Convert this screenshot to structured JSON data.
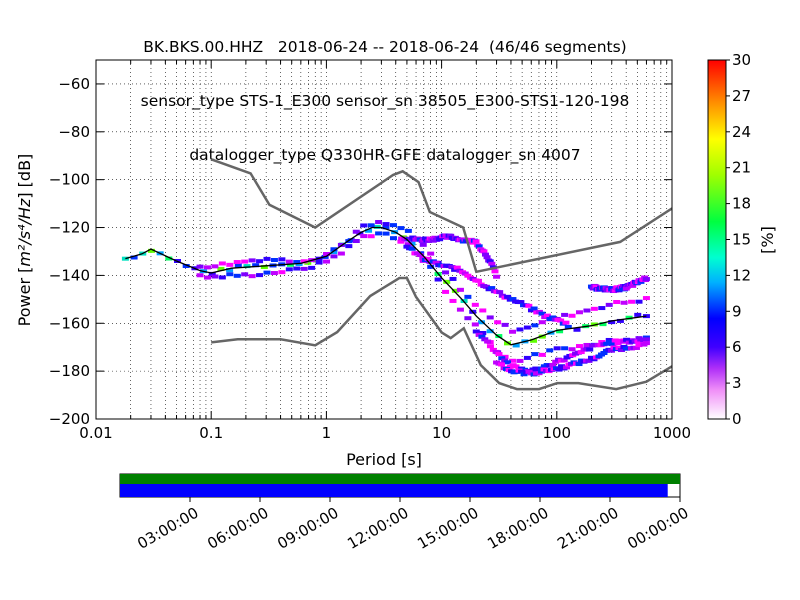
{
  "title_lines": [
    "BK.BKS.00.HHZ   2018-06-24 -- 2018-06-24  (46/46 segments)",
    "sensor_type STS-1_E300 sensor_sn 38505_E300-STS1-120-198",
    "datalogger_type Q330HR-GFE datalogger_sn 4007"
  ],
  "chart_data": {
    "type": "heatmap",
    "xlabel": "Period [s]",
    "ylabel_prefix": "Power [",
    "ylabel_units": "m²/s⁴/Hz",
    "ylabel_suffix": "] [dB]",
    "xscale": "log",
    "xlim": [
      0.01,
      1000
    ],
    "ylim": [
      -200,
      -50
    ],
    "xticks": [
      {
        "value": 0.01,
        "label": "0.01"
      },
      {
        "value": 0.1,
        "label": "0.1"
      },
      {
        "value": 1,
        "label": "1"
      },
      {
        "value": 10,
        "label": "10"
      },
      {
        "value": 100,
        "label": "100"
      },
      {
        "value": 1000,
        "label": "1000"
      }
    ],
    "yticks": [
      {
        "value": -60,
        "label": "−60"
      },
      {
        "value": -80,
        "label": "−80"
      },
      {
        "value": -100,
        "label": "−100"
      },
      {
        "value": -120,
        "label": "−120"
      },
      {
        "value": -140,
        "label": "−140"
      },
      {
        "value": -160,
        "label": "−160"
      },
      {
        "value": -180,
        "label": "−180"
      },
      {
        "value": -200,
        "label": "−200"
      }
    ],
    "colorbar": {
      "label": "[%]",
      "min": 0,
      "max": 30,
      "ticks": [
        {
          "value": 0,
          "label": "0"
        },
        {
          "value": 3,
          "label": "3"
        },
        {
          "value": 6,
          "label": "6"
        },
        {
          "value": 9,
          "label": "9"
        },
        {
          "value": 12,
          "label": "12"
        },
        {
          "value": 15,
          "label": "15"
        },
        {
          "value": 18,
          "label": "18"
        },
        {
          "value": 21,
          "label": "21"
        },
        {
          "value": 24,
          "label": "24"
        },
        {
          "value": 27,
          "label": "27"
        },
        {
          "value": 30,
          "label": "30"
        }
      ]
    },
    "series": [
      {
        "role": "new_high_noise_model",
        "color": "#666666",
        "x": [
          0.1,
          0.22,
          0.32,
          0.8,
          3.8,
          4.6,
          6.3,
          7.9,
          15.4,
          20.0,
          354.8,
          1000
        ],
        "y": [
          -91.5,
          -97.4,
          -110.5,
          -120.0,
          -98.0,
          -96.5,
          -101.0,
          -113.5,
          -120.0,
          -138.5,
          -126.0,
          -112.0
        ]
      },
      {
        "role": "new_low_noise_model",
        "color": "#666666",
        "x": [
          0.1,
          0.17,
          0.4,
          0.8,
          1.24,
          2.4,
          4.3,
          5.0,
          6.0,
          10.0,
          12.0,
          15.6,
          21.9,
          31.6,
          45.0,
          70.0,
          101.0,
          154.0,
          328.0,
          600.0,
          1000
        ],
        "y": [
          -168.0,
          -166.7,
          -166.7,
          -169.2,
          -163.7,
          -148.6,
          -141.1,
          -141.1,
          -149.0,
          -163.8,
          -166.2,
          -162.1,
          -177.5,
          -185.0,
          -187.5,
          -187.5,
          -185.0,
          -185.0,
          -187.5,
          -184.4,
          -178.0
        ]
      },
      {
        "role": "mode_line",
        "color": "#000000",
        "x": [
          0.018,
          0.025,
          0.03,
          0.05,
          0.08,
          0.1,
          0.15,
          0.3,
          0.6,
          1.0,
          1.5,
          2.0,
          2.5,
          3.0,
          4.0,
          5.0,
          7.0,
          10.0,
          15.0,
          20.0,
          30.0,
          40.0,
          60.0,
          100.0,
          200.0,
          300.0,
          600.0
        ],
        "y": [
          -133,
          -131,
          -129,
          -134,
          -138,
          -139,
          -137,
          -136,
          -135,
          -132,
          -126,
          -122,
          -120,
          -120,
          -122,
          -125,
          -132,
          -141,
          -150,
          -157,
          -165,
          -169,
          -167,
          -163,
          -161,
          -159,
          -157
        ]
      }
    ],
    "density": [
      {
        "x": [
          0.018,
          0.025,
          0.03,
          0.04,
          0.05,
          0.06,
          0.08,
          0.1,
          0.12,
          0.15,
          0.2,
          0.3,
          0.4,
          0.5,
          0.6,
          0.7,
          0.8,
          0.9,
          1.0,
          1.2,
          1.5,
          2.0,
          2.5,
          3.0,
          3.5,
          4.0,
          5.0,
          6.0,
          7.0,
          8.0,
          10.0,
          12.0,
          15.0,
          20.0,
          25.0,
          30.0,
          40.0,
          50.0,
          60.0,
          70.0,
          80.0,
          100.0,
          130.0,
          160.0,
          200.0,
          250.0,
          300.0,
          400.0,
          500.0,
          600.0
        ],
        "y": [
          -133,
          -131,
          -129,
          -132,
          -134,
          -136,
          -138,
          -139,
          -138,
          -137,
          -136,
          -136,
          -135.5,
          -135,
          -135,
          -134,
          -133.5,
          -133,
          -132,
          -130,
          -126,
          -122,
          -120,
          -120,
          -121,
          -122,
          -125,
          -128,
          -132,
          -135,
          -141,
          -145,
          -150,
          -157,
          -162,
          -165,
          -169,
          -168,
          -167,
          -166,
          -165,
          -163,
          -162,
          -162,
          -161,
          -160,
          -159,
          -158,
          -157,
          -157
        ]
      },
      {
        "x": [
          0.08,
          0.1,
          0.15,
          0.2,
          0.3,
          0.5,
          0.8,
          1.0,
          1.5,
          2.0,
          3.0,
          5.0,
          8.0,
          10.0,
          15.0,
          20.0,
          30.0,
          40.0,
          60.0,
          100.0,
          200.0,
          300.0,
          600.0
        ],
        "y": [
          -136,
          -136,
          -135,
          -134,
          -133,
          -134,
          -133,
          -131,
          -126,
          -120,
          -118,
          -121,
          -131,
          -137,
          -146,
          -153,
          -159,
          -163,
          -161,
          -158,
          -154,
          -152,
          -150
        ]
      },
      {
        "x": [
          0.08,
          0.1,
          0.15,
          0.2,
          0.3,
          0.5,
          0.8,
          1.0,
          1.5,
          2.0,
          3.0,
          5.0,
          8.0,
          10.0,
          15.0,
          20.0,
          30.0,
          40.0,
          60.0,
          100.0,
          200.0,
          300.0,
          600.0
        ],
        "y": [
          -140,
          -141,
          -140,
          -140,
          -139,
          -138,
          -136,
          -134,
          -129,
          -124,
          -122,
          -127,
          -136,
          -145,
          -155,
          -161,
          -171,
          -176,
          -174,
          -171,
          -169,
          -167,
          -166
        ]
      },
      {
        "x": [
          4.5,
          6.0,
          8.0,
          10.0,
          12.0,
          15.0,
          20.0,
          25.0,
          30.0
        ],
        "y": [
          -124,
          -125,
          -125,
          -124,
          -124,
          -125,
          -126,
          -132,
          -140
        ]
      },
      {
        "x": [
          5.0,
          7.0,
          10.0,
          13.0,
          16.0,
          20.0,
          30.0,
          50.0,
          80.0,
          120.0
        ],
        "y": [
          -128,
          -133,
          -136,
          -137,
          -139,
          -142,
          -147,
          -152,
          -157,
          -160
        ]
      },
      {
        "x": [
          20.0,
          30.0,
          40.0,
          60.0,
          80.0,
          100.0,
          150.0,
          200.0,
          300.0,
          600.0
        ],
        "y": [
          -163,
          -172,
          -178,
          -180,
          -178,
          -176,
          -173,
          -170,
          -168,
          -167
        ]
      },
      {
        "x": [
          30.0,
          40.0,
          60.0,
          100.0,
          200.0,
          300.0,
          600.0
        ],
        "y": [
          -176,
          -180,
          -181,
          -179,
          -175,
          -171,
          -169
        ]
      },
      {
        "x": [
          200.0,
          300.0,
          400.0,
          500.0,
          600.0
        ],
        "y": [
          -145,
          -146,
          -145,
          -143,
          -141
        ]
      }
    ]
  },
  "timeline": {
    "ticks": [
      "03:00:00",
      "06:00:00",
      "09:00:00",
      "12:00:00",
      "15:00:00",
      "18:00:00",
      "21:00:00",
      "00:00:00"
    ],
    "data_coverage_color": "#008000",
    "gap_coverage_color": "#0000ff",
    "coverage_fraction": 0.978
  }
}
